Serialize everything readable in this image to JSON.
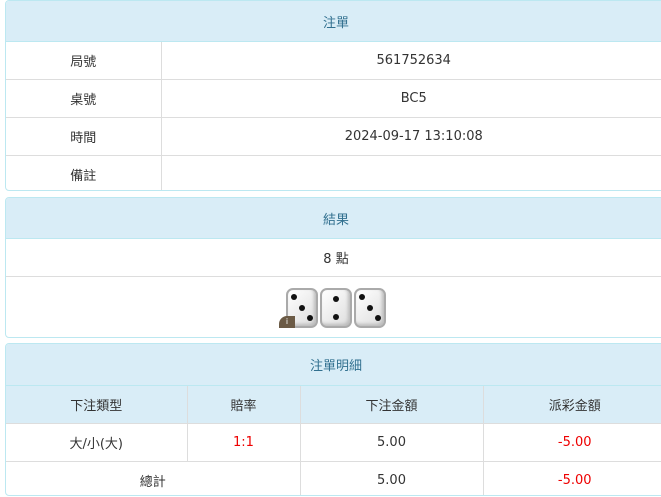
{
  "order": {
    "title": "注單",
    "rows": [
      {
        "label": "局號",
        "value": "561752634"
      },
      {
        "label": "桌號",
        "value": "BC5"
      },
      {
        "label": "時間",
        "value": "2024-09-17 13:10:08"
      },
      {
        "label": "備註",
        "value": ""
      }
    ]
  },
  "result": {
    "title": "結果",
    "points": "8 點",
    "dice": [
      3,
      2,
      3
    ],
    "info_badge": "i"
  },
  "detail": {
    "title": "注單明細",
    "headers": [
      "下注類型",
      "賠率",
      "下注金額",
      "派彩金額"
    ],
    "rows": [
      {
        "type": "大/小(大)",
        "odds": "1:1",
        "bet": "5.00",
        "payout": "-5.00"
      }
    ],
    "total": {
      "label": "總計",
      "bet": "5.00",
      "payout": "-5.00"
    }
  },
  "colors": {
    "header_bg": "#d9edf7",
    "header_text": "#31708f",
    "negative": "#e00000"
  }
}
